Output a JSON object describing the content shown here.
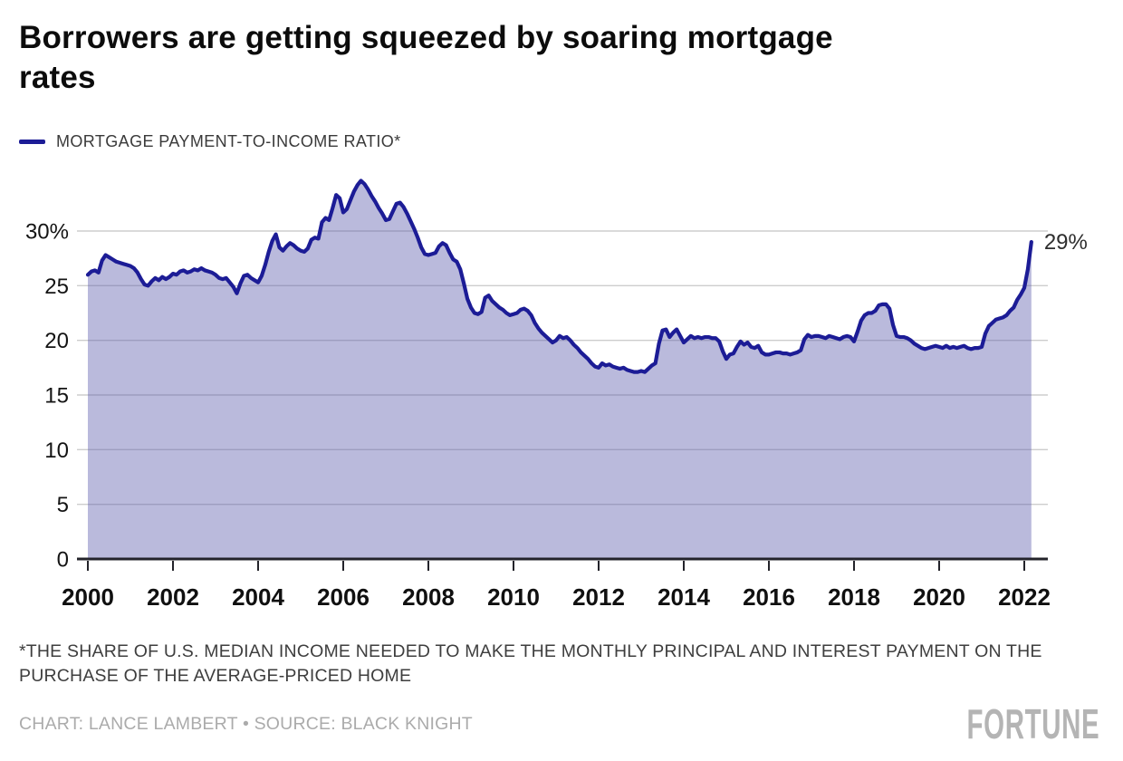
{
  "header": {
    "title_lines": [
      "Borrowers are getting squeezed by soaring mortgage",
      "rates"
    ]
  },
  "legend": {
    "label": "MORTGAGE PAYMENT-TO-INCOME RATIO*",
    "swatch_color": "#1c1c96"
  },
  "chart_data": {
    "type": "area",
    "title": "Mortgage payment-to-income ratio",
    "x_start_year": 2000,
    "points_per_year": 12,
    "x_axis": {
      "tick_years": [
        2000,
        2002,
        2004,
        2006,
        2008,
        2010,
        2012,
        2014,
        2016,
        2018,
        2020,
        2022
      ]
    },
    "y_axis": {
      "tick_values": [
        0,
        5,
        10,
        15,
        20,
        25,
        30
      ],
      "tick_labels": [
        "0",
        "5",
        "10",
        "15",
        "20",
        "25",
        "30%"
      ],
      "range": [
        0,
        35
      ]
    },
    "grid": true,
    "legend_position": "top-left",
    "end_label": "29%",
    "end_value": 29,
    "line_color": "#1c1c96",
    "fill_color": "#5b5bab",
    "fill_opacity": 0.42,
    "grid_color": "#cdcdcd",
    "axis_color": "#23232a",
    "values": [
      26.0,
      26.3,
      26.4,
      26.2,
      27.3,
      27.8,
      27.6,
      27.4,
      27.2,
      27.1,
      27.0,
      26.9,
      26.8,
      26.6,
      26.2,
      25.6,
      25.1,
      25.0,
      25.4,
      25.7,
      25.5,
      25.8,
      25.6,
      25.8,
      26.1,
      26.0,
      26.3,
      26.4,
      26.2,
      26.3,
      26.5,
      26.4,
      26.6,
      26.4,
      26.3,
      26.2,
      26.0,
      25.7,
      25.6,
      25.7,
      25.3,
      24.9,
      24.3,
      25.2,
      25.9,
      26.0,
      25.7,
      25.5,
      25.3,
      25.9,
      26.9,
      28.1,
      29.1,
      29.7,
      28.5,
      28.2,
      28.6,
      28.9,
      28.7,
      28.4,
      28.2,
      28.1,
      28.4,
      29.2,
      29.4,
      29.3,
      30.8,
      31.2,
      31.0,
      32.1,
      33.3,
      33.0,
      31.7,
      32.0,
      32.8,
      33.6,
      34.2,
      34.6,
      34.3,
      33.8,
      33.2,
      32.7,
      32.1,
      31.6,
      31.0,
      31.1,
      31.8,
      32.5,
      32.6,
      32.2,
      31.6,
      30.9,
      30.2,
      29.4,
      28.5,
      27.9,
      27.8,
      27.9,
      28.0,
      28.6,
      28.9,
      28.7,
      28.0,
      27.4,
      27.2,
      26.5,
      25.2,
      23.8,
      23.0,
      22.5,
      22.4,
      22.6,
      23.9,
      24.1,
      23.6,
      23.3,
      23.0,
      22.8,
      22.5,
      22.3,
      22.4,
      22.5,
      22.8,
      22.9,
      22.7,
      22.3,
      21.6,
      21.1,
      20.7,
      20.4,
      20.1,
      19.8,
      20.0,
      20.4,
      20.2,
      20.3,
      20.0,
      19.6,
      19.3,
      18.9,
      18.6,
      18.3,
      17.9,
      17.6,
      17.5,
      17.9,
      17.7,
      17.8,
      17.6,
      17.5,
      17.4,
      17.5,
      17.3,
      17.2,
      17.1,
      17.1,
      17.2,
      17.1,
      17.4,
      17.7,
      17.9,
      19.7,
      20.9,
      21.0,
      20.3,
      20.7,
      21.0,
      20.4,
      19.8,
      20.1,
      20.4,
      20.2,
      20.3,
      20.2,
      20.3,
      20.3,
      20.2,
      20.2,
      19.9,
      19.0,
      18.3,
      18.7,
      18.8,
      19.4,
      19.9,
      19.6,
      19.8,
      19.4,
      19.3,
      19.5,
      18.9,
      18.7,
      18.7,
      18.8,
      18.9,
      18.9,
      18.8,
      18.8,
      18.7,
      18.8,
      18.9,
      19.1,
      20.1,
      20.5,
      20.3,
      20.4,
      20.4,
      20.3,
      20.2,
      20.4,
      20.3,
      20.2,
      20.1,
      20.3,
      20.4,
      20.3,
      19.9,
      20.8,
      21.8,
      22.3,
      22.5,
      22.5,
      22.7,
      23.2,
      23.3,
      23.3,
      22.9,
      21.4,
      20.4,
      20.3,
      20.3,
      20.2,
      20.0,
      19.7,
      19.5,
      19.3,
      19.2,
      19.3,
      19.4,
      19.5,
      19.4,
      19.3,
      19.5,
      19.3,
      19.4,
      19.3,
      19.4,
      19.5,
      19.3,
      19.2,
      19.3,
      19.3,
      19.4,
      20.6,
      21.3,
      21.6,
      21.9,
      22.0,
      22.1,
      22.3,
      22.7,
      23.0,
      23.7,
      24.2,
      24.8,
      26.5,
      29.0
    ]
  },
  "footnote": {
    "line1": "*THE SHARE OF U.S. MEDIAN INCOME NEEDED TO MAKE THE MONTHLY PRINCIPAL AND INTEREST PAYMENT ON THE",
    "line2": "PURCHASE OF THE AVERAGE-PRICED HOME"
  },
  "credit": {
    "text": "CHART: LANCE LAMBERT • SOURCE: BLACK KNIGHT"
  },
  "brand": {
    "logo_text": "FORTUNE"
  }
}
